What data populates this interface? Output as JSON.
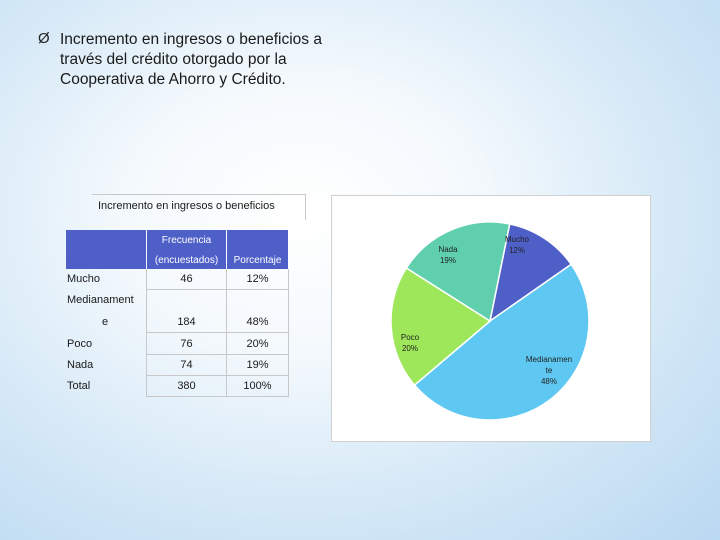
{
  "bullet": {
    "marker": "Ø",
    "lines": [
      "Incremento en ingresos o beneficios a",
      "través del crédito otorgado por la",
      "Cooperativa de Ahorro y Crédito."
    ]
  },
  "table": {
    "title": "Incremento en ingresos o beneficios",
    "headers": {
      "frecuencia_line1": "Frecuencia",
      "frecuencia_line2": "(encuestados)",
      "porcentaje": "Porcentaje"
    },
    "rows": [
      {
        "label": "Mucho",
        "frecuencia": "46",
        "porcentaje": "12%"
      },
      {
        "label_line1": "Medianament",
        "label_line2": "e",
        "frecuencia": "184",
        "porcentaje": "48%"
      },
      {
        "label": "Poco",
        "frecuencia": "76",
        "porcentaje": "20%"
      },
      {
        "label": "Nada",
        "frecuencia": "74",
        "porcentaje": "19%"
      },
      {
        "label": "Total",
        "frecuencia": "380",
        "porcentaje": "100%"
      }
    ]
  },
  "chart_data": {
    "type": "pie",
    "title": "",
    "slices": [
      {
        "label_lines": [
          "Mucho",
          "12%"
        ],
        "value": 12,
        "color": "#4f5fc8"
      },
      {
        "label_lines": [
          "Medianamen",
          "te",
          "48%"
        ],
        "value": 48,
        "color": "#5ec8f2"
      },
      {
        "label_lines": [
          "Poco",
          "20%"
        ],
        "value": 20,
        "color": "#9ee65a"
      },
      {
        "label_lines": [
          "Nada",
          "19%"
        ],
        "value": 19,
        "color": "#5fcfae"
      }
    ],
    "legend": "none"
  }
}
